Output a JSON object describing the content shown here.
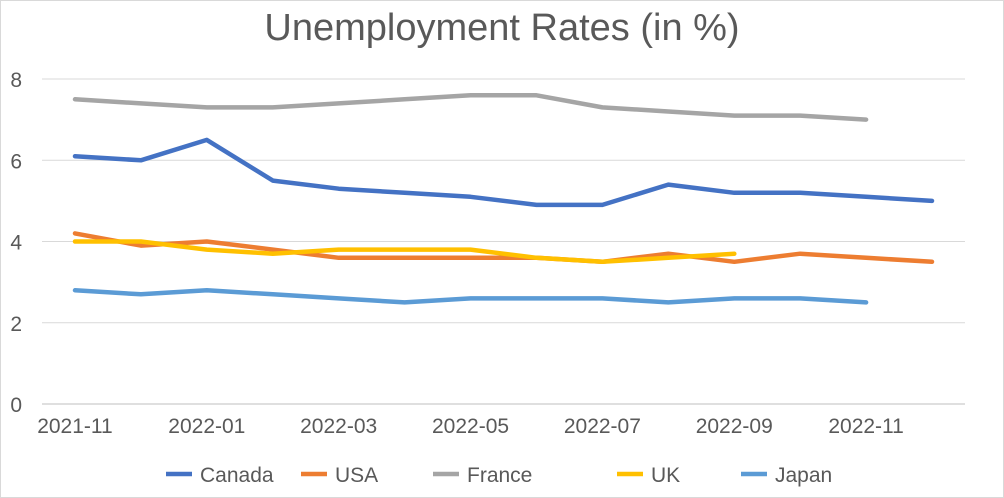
{
  "chart_data": {
    "type": "line",
    "title": "Unemployment Rates (in %)",
    "xlabel": "",
    "ylabel": "",
    "x": [
      "2021-11",
      "2021-12",
      "2022-01",
      "2022-02",
      "2022-03",
      "2022-04",
      "2022-05",
      "2022-06",
      "2022-07",
      "2022-08",
      "2022-09",
      "2022-10",
      "2022-11",
      "2022-12"
    ],
    "x_tick_labels": [
      "2021-11",
      "2022-01",
      "2022-03",
      "2022-05",
      "2022-07",
      "2022-09",
      "2022-11"
    ],
    "y_tick_labels": [
      "0",
      "2",
      "4",
      "6",
      "8"
    ],
    "ylim": [
      0,
      8
    ],
    "grid": true,
    "legend_position": "bottom",
    "series": [
      {
        "name": "Canada",
        "color": "#4472c4",
        "values": [
          6.1,
          6.0,
          6.5,
          5.5,
          5.3,
          5.2,
          5.1,
          4.9,
          4.9,
          5.4,
          5.2,
          5.2,
          5.1,
          5.0
        ]
      },
      {
        "name": "USA",
        "color": "#ed7d31",
        "values": [
          4.2,
          3.9,
          4.0,
          3.8,
          3.6,
          3.6,
          3.6,
          3.6,
          3.5,
          3.7,
          3.5,
          3.7,
          3.6,
          3.5
        ]
      },
      {
        "name": "France",
        "color": "#a5a5a5",
        "values": [
          7.5,
          7.4,
          7.3,
          7.3,
          7.4,
          7.5,
          7.6,
          7.6,
          7.3,
          7.2,
          7.1,
          7.1,
          7.0,
          null
        ]
      },
      {
        "name": "UK",
        "color": "#ffc000",
        "values": [
          4.0,
          4.0,
          3.8,
          3.7,
          3.8,
          3.8,
          3.8,
          3.6,
          3.5,
          3.6,
          3.7,
          null,
          null,
          null
        ]
      },
      {
        "name": "Japan",
        "color": "#5b9bd5",
        "values": [
          2.8,
          2.7,
          2.8,
          2.7,
          2.6,
          2.5,
          2.6,
          2.6,
          2.6,
          2.5,
          2.6,
          2.6,
          2.5,
          null
        ]
      }
    ]
  }
}
